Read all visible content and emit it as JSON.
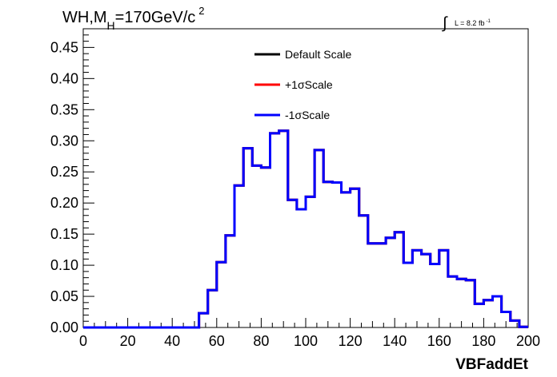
{
  "chart_data": {
    "type": "line",
    "title_main": "WH,M",
    "title_sub": "H",
    "title_rest": "=170GeV/c",
    "title_sup": "2",
    "lumi_label": "L = 8.2 fb",
    "lumi_sup": "-1",
    "xlabel": "VBFaddEt",
    "ylabel": "",
    "xlim": [
      0,
      200
    ],
    "ylim": [
      0,
      0.48
    ],
    "x_ticks": [
      0,
      20,
      40,
      60,
      80,
      100,
      120,
      140,
      160,
      180,
      200
    ],
    "x_tick_labels": [
      "0",
      "20",
      "40",
      "60",
      "80",
      "100",
      "120",
      "140",
      "160",
      "180",
      "200"
    ],
    "y_ticks": [
      0,
      0.05,
      0.1,
      0.15,
      0.2,
      0.25,
      0.3,
      0.35,
      0.4,
      0.45
    ],
    "y_tick_labels": [
      "0.00",
      "0.05",
      "0.10",
      "0.15",
      "0.20",
      "0.25",
      "0.30",
      "0.35",
      "0.40",
      "0.45"
    ],
    "bin_edges": [
      0,
      4,
      8,
      12,
      16,
      20,
      24,
      28,
      32,
      36,
      40,
      44,
      48,
      52,
      56,
      60,
      64,
      68,
      72,
      76,
      80,
      84,
      88,
      92,
      96,
      100,
      104,
      108,
      112,
      116,
      120,
      124,
      128,
      132,
      136,
      140,
      144,
      148,
      152,
      156,
      160,
      164,
      168,
      172,
      176,
      180,
      184,
      188,
      192,
      196,
      200
    ],
    "series": [
      {
        "name": "Default Scale",
        "color": "#000000",
        "values": [
          0,
          0,
          0,
          0,
          0,
          0,
          0,
          0,
          0,
          0,
          0,
          0,
          0,
          0.023,
          0.06,
          0.105,
          0.148,
          0.228,
          0.288,
          0.26,
          0.257,
          0.312,
          0.316,
          0.205,
          0.19,
          0.21,
          0.285,
          0.234,
          0.233,
          0.217,
          0.223,
          0.18,
          0.135,
          0.135,
          0.144,
          0.153,
          0.104,
          0.124,
          0.118,
          0.102,
          0.124,
          0.082,
          0.078,
          0.076,
          0.038,
          0.044,
          0.05,
          0.025,
          0.011,
          0.001
        ]
      },
      {
        "name": "+1σScale",
        "color": "#ff0000",
        "values": [
          0,
          0,
          0,
          0,
          0,
          0,
          0,
          0,
          0,
          0,
          0,
          0,
          0,
          0.023,
          0.06,
          0.105,
          0.148,
          0.228,
          0.288,
          0.26,
          0.257,
          0.312,
          0.316,
          0.205,
          0.19,
          0.21,
          0.285,
          0.234,
          0.233,
          0.217,
          0.223,
          0.18,
          0.135,
          0.135,
          0.144,
          0.153,
          0.104,
          0.124,
          0.118,
          0.102,
          0.124,
          0.082,
          0.078,
          0.076,
          0.038,
          0.044,
          0.05,
          0.025,
          0.011,
          0.001
        ]
      },
      {
        "name": "-1σScale",
        "color": "#0000ff",
        "values": [
          0,
          0,
          0,
          0,
          0,
          0,
          0,
          0,
          0,
          0,
          0,
          0,
          0,
          0.023,
          0.06,
          0.105,
          0.148,
          0.228,
          0.288,
          0.26,
          0.257,
          0.312,
          0.316,
          0.205,
          0.19,
          0.21,
          0.285,
          0.234,
          0.233,
          0.217,
          0.223,
          0.18,
          0.135,
          0.135,
          0.144,
          0.153,
          0.104,
          0.124,
          0.118,
          0.102,
          0.124,
          0.082,
          0.078,
          0.076,
          0.038,
          0.044,
          0.05,
          0.025,
          0.011,
          0.001
        ]
      }
    ],
    "legend_placement": "top-center",
    "grid": false
  }
}
